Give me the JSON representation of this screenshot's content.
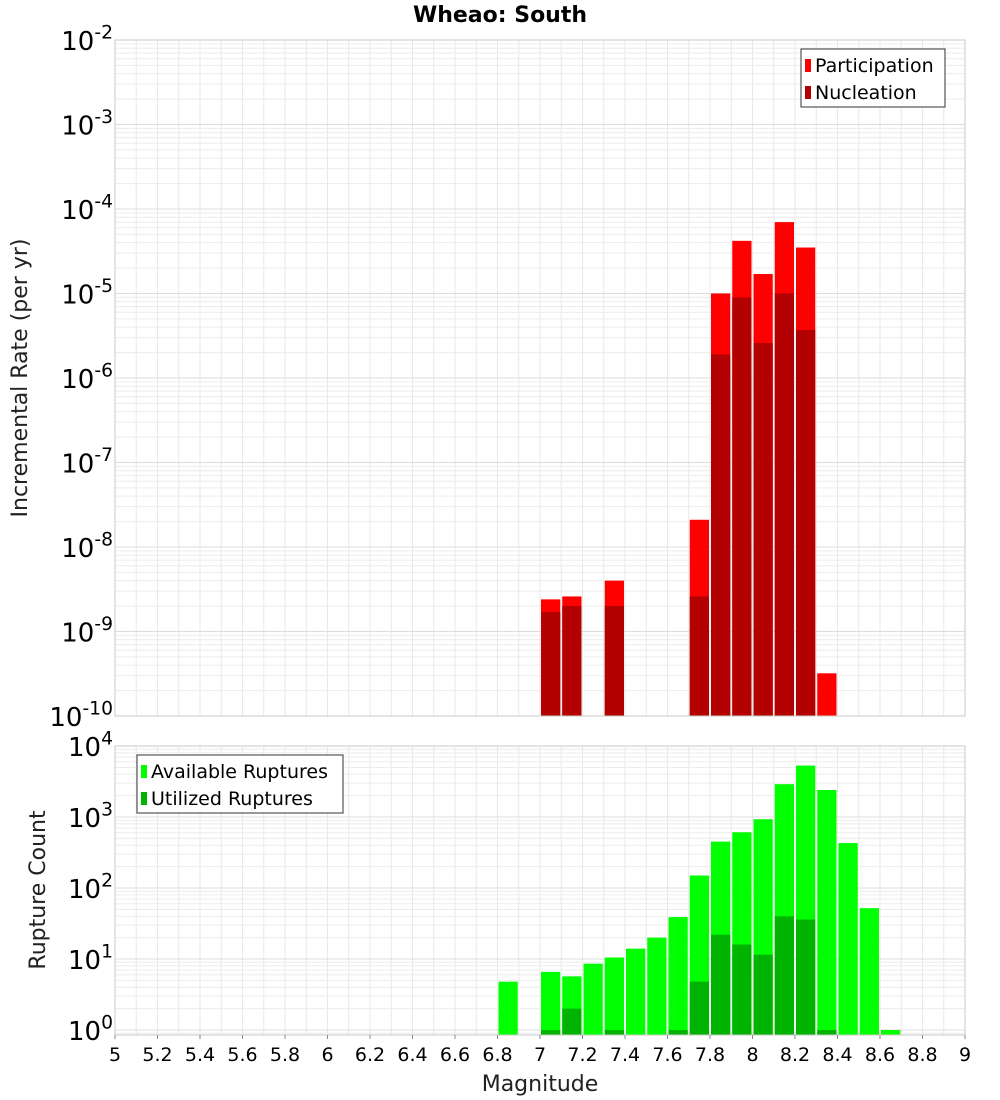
{
  "chart_data": [
    {
      "type": "bar",
      "title": "Wheao: South",
      "ylabel": "Incremental Rate (per yr)",
      "xlabel": "",
      "yscale": "log",
      "ylim_exponents": [
        -10,
        -2
      ],
      "xlim": [
        5,
        9
      ],
      "bin_width": 0.1,
      "legend_position": "top-right",
      "grid": true,
      "y_tick_labels": [
        {
          "base": "10",
          "exp": "-2"
        },
        {
          "base": "10",
          "exp": "-3"
        },
        {
          "base": "10",
          "exp": "-4"
        },
        {
          "base": "10",
          "exp": "-5"
        },
        {
          "base": "10",
          "exp": "-6"
        },
        {
          "base": "10",
          "exp": "-7"
        },
        {
          "base": "10",
          "exp": "-8"
        },
        {
          "base": "10",
          "exp": "-9"
        },
        {
          "base": "10",
          "exp": "-10"
        }
      ],
      "series": [
        {
          "name": "Participation",
          "color": "#ff0000",
          "points": [
            {
              "x": 7.05,
              "y": 2.4e-09
            },
            {
              "x": 7.15,
              "y": 2.6e-09
            },
            {
              "x": 7.35,
              "y": 4e-09
            },
            {
              "x": 7.75,
              "y": 2.1e-08
            },
            {
              "x": 7.85,
              "y": 1e-05
            },
            {
              "x": 7.95,
              "y": 4.2e-05
            },
            {
              "x": 8.05,
              "y": 1.7e-05
            },
            {
              "x": 8.15,
              "y": 7e-05
            },
            {
              "x": 8.25,
              "y": 3.5e-05
            },
            {
              "x": 8.35,
              "y": 3.2e-10
            }
          ]
        },
        {
          "name": "Nucleation",
          "color": "#b30000",
          "points": [
            {
              "x": 7.05,
              "y": 1.7e-09
            },
            {
              "x": 7.15,
              "y": 2e-09
            },
            {
              "x": 7.35,
              "y": 2e-09
            },
            {
              "x": 7.75,
              "y": 2.6e-09
            },
            {
              "x": 7.85,
              "y": 1.9e-06
            },
            {
              "x": 7.95,
              "y": 9e-06
            },
            {
              "x": 8.05,
              "y": 2.6e-06
            },
            {
              "x": 8.15,
              "y": 1e-05
            },
            {
              "x": 8.25,
              "y": 3.7e-06
            }
          ]
        }
      ]
    },
    {
      "type": "bar",
      "ylabel": "Rupture Count",
      "xlabel": "Magnitude",
      "yscale": "log",
      "ylim_exponents": [
        -0.07,
        4
      ],
      "xlim": [
        5,
        9
      ],
      "bin_width": 0.1,
      "legend_position": "top-left",
      "grid": true,
      "x_tick_labels": [
        "5",
        "5.2",
        "5.4",
        "5.6",
        "5.8",
        "6",
        "6.2",
        "6.4",
        "6.6",
        "6.8",
        "7",
        "7.2",
        "7.4",
        "7.6",
        "7.8",
        "8",
        "8.2",
        "8.4",
        "8.6",
        "8.8",
        "9"
      ],
      "y_tick_labels": [
        {
          "base": "10",
          "exp": "4"
        },
        {
          "base": "10",
          "exp": "3"
        },
        {
          "base": "10",
          "exp": "2"
        },
        {
          "base": "10",
          "exp": "1"
        },
        {
          "base": "10",
          "exp": "0"
        }
      ],
      "series": [
        {
          "name": "Available Ruptures",
          "color": "#00ff00",
          "points": [
            {
              "x": 6.85,
              "y": 4.8
            },
            {
              "x": 7.05,
              "y": 6.6
            },
            {
              "x": 7.15,
              "y": 5.7
            },
            {
              "x": 7.25,
              "y": 8.6
            },
            {
              "x": 7.35,
              "y": 10.5
            },
            {
              "x": 7.45,
              "y": 14
            },
            {
              "x": 7.55,
              "y": 20
            },
            {
              "x": 7.65,
              "y": 39
            },
            {
              "x": 7.75,
              "y": 150
            },
            {
              "x": 7.85,
              "y": 450
            },
            {
              "x": 7.95,
              "y": 610
            },
            {
              "x": 8.05,
              "y": 930
            },
            {
              "x": 8.15,
              "y": 2900
            },
            {
              "x": 8.25,
              "y": 5300
            },
            {
              "x": 8.35,
              "y": 2400
            },
            {
              "x": 8.45,
              "y": 430
            },
            {
              "x": 8.55,
              "y": 52
            },
            {
              "x": 8.65,
              "y": 1
            }
          ]
        },
        {
          "name": "Utilized Ruptures",
          "color": "#00b300",
          "points": [
            {
              "x": 7.05,
              "y": 1
            },
            {
              "x": 7.15,
              "y": 2
            },
            {
              "x": 7.35,
              "y": 1
            },
            {
              "x": 7.65,
              "y": 1
            },
            {
              "x": 7.75,
              "y": 4.8
            },
            {
              "x": 7.85,
              "y": 22
            },
            {
              "x": 7.95,
              "y": 16
            },
            {
              "x": 8.05,
              "y": 11.5
            },
            {
              "x": 8.15,
              "y": 40
            },
            {
              "x": 8.25,
              "y": 36
            },
            {
              "x": 8.35,
              "y": 1
            }
          ]
        }
      ]
    }
  ]
}
